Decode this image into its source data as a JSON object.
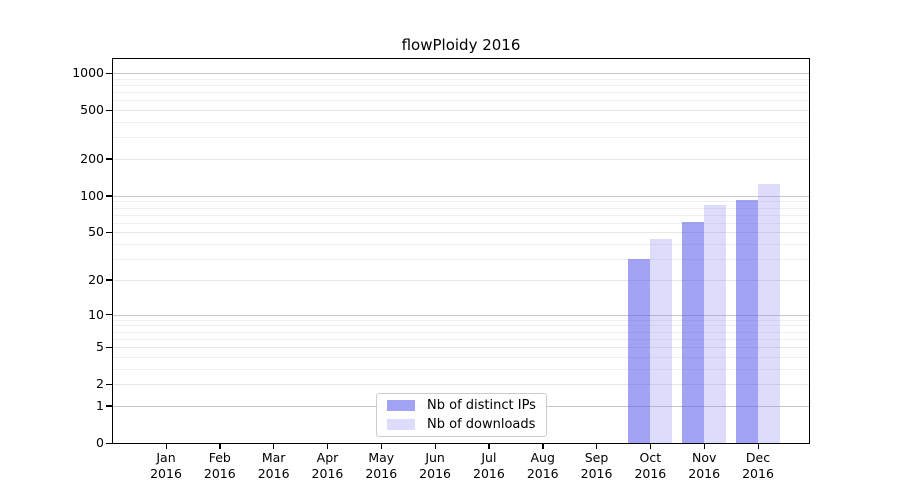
{
  "title": "flowPloidy 2016",
  "legend": {
    "items": [
      {
        "key": "distinct_ips",
        "label": "Nb of distinct IPs",
        "color": "rgba(91,91,237,0.56)"
      },
      {
        "key": "downloads",
        "label": "Nb of downloads",
        "color": "rgba(143,143,242,0.30)"
      }
    ]
  },
  "chart_data": {
    "type": "bar",
    "title": "flowPloidy 2016",
    "categories": [
      "Jan",
      "Feb",
      "Mar",
      "Apr",
      "May",
      "Jun",
      "Jul",
      "Aug",
      "Sep",
      "Oct",
      "Nov",
      "Dec"
    ],
    "year": "2016",
    "series": [
      {
        "name": "Nb of distinct IPs",
        "values": [
          0,
          0,
          0,
          0,
          0,
          0,
          0,
          0,
          0,
          30,
          61,
          92
        ]
      },
      {
        "name": "Nb of downloads",
        "values": [
          0,
          0,
          0,
          0,
          0,
          0,
          0,
          0,
          0,
          44,
          84,
          125
        ]
      }
    ],
    "xlabel": "",
    "ylabel": "",
    "y_scale": "log10(1+y)",
    "y_ticks": [
      0,
      1,
      2,
      5,
      10,
      20,
      50,
      100,
      200,
      500,
      1000
    ],
    "ylim": [
      0,
      1300
    ],
    "grid": "on",
    "legend_position": "lower center"
  },
  "colors": {
    "background": "#ffffff",
    "bar_distinct_ips": "rgba(91,91,237,0.56)",
    "bar_downloads": "rgba(143,143,242,0.30)",
    "grid_major": "#c6c6c6",
    "grid_minor": "#efefef",
    "spine": "#000000",
    "text": "#000000"
  }
}
